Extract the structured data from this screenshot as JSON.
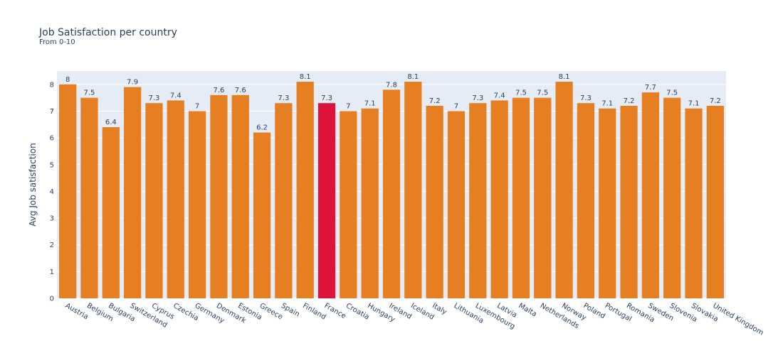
{
  "chart_data": {
    "type": "bar",
    "title": "Job Satisfaction per country",
    "subtitle": "From 0-10",
    "xlabel": "",
    "ylabel": "Avg Job satisfaction",
    "ylim": [
      0,
      8.5
    ],
    "yticks": [
      0,
      1,
      2,
      3,
      4,
      5,
      6,
      7,
      8
    ],
    "grid": true,
    "colors": {
      "bar": "#e67e22",
      "highlight": "#dc143c",
      "plot_bg": "#e5ecf6",
      "grid": "#ffffff"
    },
    "highlight_category": "France",
    "categories": [
      "Austria",
      "Belgium",
      "Bulgaria",
      "Switzerland",
      "Cyprus",
      "Czechia",
      "Germany",
      "Denmark",
      "Estonia",
      "Greece",
      "Spain",
      "Finland",
      "France",
      "Croatia",
      "Hungary",
      "Ireland",
      "Iceland",
      "Italy",
      "Lithuania",
      "Luxembourg",
      "Latvia",
      "Malta",
      "Netherlands",
      "Norway",
      "Poland",
      "Portugal",
      "Romania",
      "Sweden",
      "Slovenia",
      "Slovakia",
      "United Kingdom"
    ],
    "values": [
      8,
      7.5,
      6.4,
      7.9,
      7.3,
      7.4,
      7,
      7.6,
      7.6,
      6.2,
      7.3,
      8.1,
      7.3,
      7,
      7.1,
      7.8,
      8.1,
      7.2,
      7,
      7.3,
      7.4,
      7.5,
      7.5,
      8.1,
      7.3,
      7.1,
      7.2,
      7.7,
      7.5,
      7.1,
      7.2
    ]
  }
}
